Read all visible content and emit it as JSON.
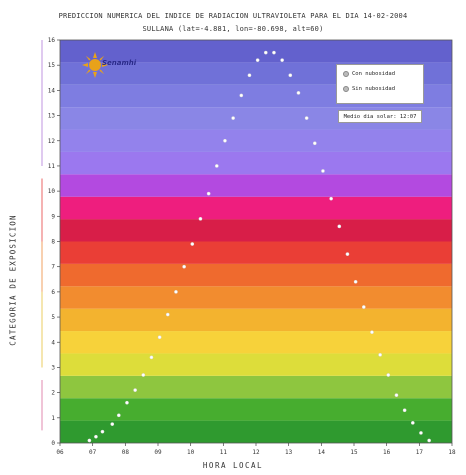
{
  "title_line1": "PREDICCION NUMERICA DEL INDICE DE RADIACION ULTRAVIOLETA PARA EL DIA 14-02-2004",
  "title_line2": "SULLANA (lat=-4.881, lon=-80.698, alt=60)",
  "logo_text": "Senamhi",
  "legend": {
    "with_clouds": "Con nubosidad",
    "without_clouds": "Sin nubosidad",
    "solar_noon": "Medio dia solar: 12:07"
  },
  "colors": {
    "bands": [
      "#2f9a2f",
      "#47ad2f",
      "#8ec63f",
      "#dddd3a",
      "#f7d23a",
      "#f3b32f",
      "#f28c2f",
      "#ef6a2e",
      "#ea3e36",
      "#d81e48",
      "#ee1e7e",
      "#b34ae0",
      "#9b78ef",
      "#9382ec",
      "#8a86e6",
      "#7e7de1",
      "#7071d8",
      "#6361cd"
    ],
    "category_labels": [
      "#d96b9b",
      "#d96b9b",
      "#e6c23a",
      "#ef8a3a",
      "#e64040",
      "#b07ad8"
    ]
  },
  "chart_data": {
    "type": "scatter",
    "title": "PREDICCION NUMERICA DEL INDICE DE RADIACION ULTRAVIOLETA PARA EL DIA 14-02-2004",
    "xlabel": "HORA LOCAL",
    "ylabel": "CATEGORIA DE EXPOSICION",
    "xlim": [
      6,
      18
    ],
    "ylim": [
      0,
      16
    ],
    "x_ticks": [
      "06",
      "07",
      "08",
      "09",
      "10",
      "11",
      "12",
      "13",
      "14",
      "15",
      "16",
      "17",
      "18"
    ],
    "y_ticks": [
      "0",
      "1",
      "2",
      "3",
      "4",
      "5",
      "6",
      "7",
      "8",
      "9",
      "10",
      "11",
      "12",
      "13",
      "14",
      "15",
      "16"
    ],
    "grid": false,
    "legend_position": "top-right",
    "series": [
      {
        "name": "Sin nubosidad",
        "x": [
          6.9,
          7.1,
          7.3,
          7.6,
          7.8,
          8.05,
          8.3,
          8.55,
          8.8,
          9.05,
          9.3,
          9.55,
          9.8,
          10.05,
          10.3,
          10.55,
          10.8,
          11.05,
          11.3,
          11.55,
          11.8,
          12.05,
          12.3,
          12.55,
          12.8,
          13.05,
          13.3,
          13.55,
          13.8,
          14.05,
          14.3,
          14.55,
          14.8,
          15.05,
          15.3,
          15.55,
          15.8,
          16.05,
          16.3,
          16.55,
          16.8,
          17.05,
          17.3
        ],
        "y": [
          0.1,
          0.25,
          0.45,
          0.75,
          1.1,
          1.6,
          2.1,
          2.7,
          3.4,
          4.2,
          5.1,
          6.0,
          7.0,
          7.9,
          8.9,
          9.9,
          11.0,
          12.0,
          12.9,
          13.8,
          14.6,
          15.2,
          15.5,
          15.5,
          15.2,
          14.6,
          13.9,
          12.9,
          11.9,
          10.8,
          9.7,
          8.6,
          7.5,
          6.4,
          5.4,
          4.4,
          3.5,
          2.7,
          1.9,
          1.3,
          0.8,
          0.4,
          0.1
        ]
      }
    ]
  }
}
